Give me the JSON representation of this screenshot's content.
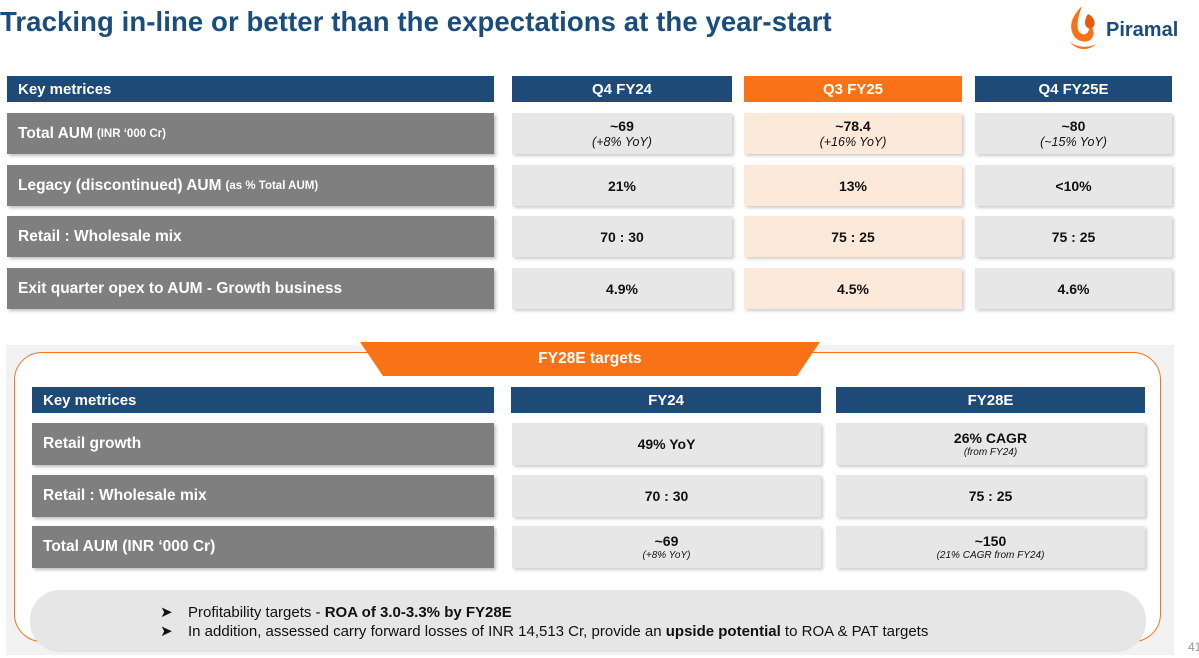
{
  "title": "Tracking in-line or better than the expectations at the year-start",
  "brand": {
    "name": "Piramal",
    "navy": "#1d4a76",
    "orange": "#f97316",
    "gray": "#7f7f7f",
    "peach": "#fde9d9"
  },
  "top_table": {
    "header": {
      "metric": "Key metrices",
      "col1": "Q4 FY24",
      "col2": "Q3 FY25",
      "col3": "Q4 FY25E"
    },
    "rows": [
      {
        "label": "Total AUM",
        "label_small": "(INR ‘000 Cr)",
        "c1": "~69",
        "c1_sub": "(+8% YoY)",
        "c2": "~78.4",
        "c2_sub": "(+16% YoY)",
        "c3": "~80",
        "c3_sub": "(~15% YoY)"
      },
      {
        "label": "Legacy (discontinued) AUM",
        "label_small": "(as % Total AUM)",
        "c1": "21%",
        "c2": "13%",
        "c3": "<10%"
      },
      {
        "label": "Retail : Wholesale mix",
        "c1": "70 : 30",
        "c2": "75 : 25",
        "c3": "75 : 25"
      },
      {
        "label": "Exit quarter opex to AUM - Growth business",
        "c1": "4.9%",
        "c2": "4.5%",
        "c3": "4.6%"
      }
    ]
  },
  "targets": {
    "tab_label": "FY28E targets",
    "header": {
      "metric": "Key metrices",
      "col1": "FY24",
      "col2": "FY28E"
    },
    "rows": [
      {
        "label": "Retail growth",
        "c1": "49% YoY",
        "c2": "26% CAGR",
        "c2_sub": "(from FY24)"
      },
      {
        "label": "Retail : Wholesale mix",
        "c1": "70 : 30",
        "c2": "75 : 25"
      },
      {
        "label": "Total AUM (INR ‘000 Cr)",
        "c1": "~69",
        "c1_sub": "(+8% YoY)",
        "c2": "~150",
        "c2_sub": "(21% CAGR from FY24)"
      }
    ]
  },
  "bullets": {
    "b1_pre": "Profitability targets - ",
    "b1_bold": "ROA of 3.0-3.3% by FY28E",
    "b2_pre": "In addition, assessed carry forward losses of INR 14,513 Cr, provide an ",
    "b2_bold": "upside potential",
    "b2_post": " to ROA & PAT targets"
  },
  "page_number": "41"
}
